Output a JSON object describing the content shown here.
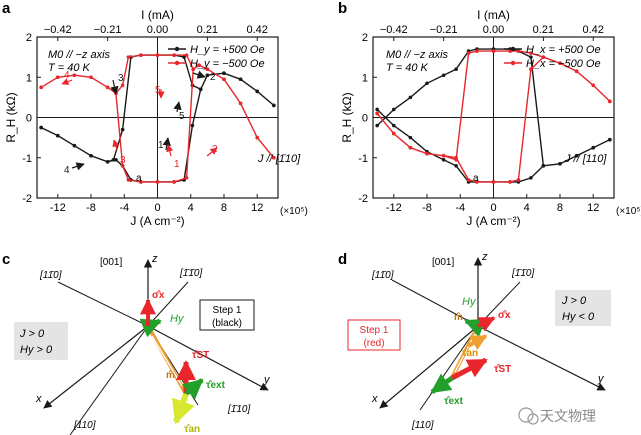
{
  "colors": {
    "black": "#1a1a1a",
    "red": "#e8262b",
    "orange": "#f0a030",
    "green": "#22a02a",
    "yellowgreen": "#d8e830",
    "grey_box": "#e4e4e4"
  },
  "chart_data": [
    {
      "type": "line",
      "panel": "a",
      "title": "",
      "xlabel": "J (A cm⁻²)",
      "x_multiplier": "(×10⁵)",
      "x2label": "I (mA)",
      "ylabel": "R_H (kΩ)",
      "xlim": [
        -14.5,
        14.5
      ],
      "ylim": [
        -2,
        2
      ],
      "x_ticks": [
        -12,
        -8,
        -4,
        0,
        4,
        8,
        12
      ],
      "y_ticks": [
        -2,
        -1,
        0,
        1,
        2
      ],
      "x2_ticks": [
        "−0.42",
        "−0.21",
        "0.00",
        "0.21",
        "0.42"
      ],
      "x2_tick_positions_J": [
        -12,
        -6,
        0,
        6,
        12
      ],
      "legend": [
        "H_y = +500 Oe",
        "H_y = −500 Oe"
      ],
      "annotations": {
        "geometry": "M0 // −z axis",
        "temperature": "T = 40 K",
        "current": "J // [1̄10]",
        "start_point": "a"
      },
      "step_numbers": [
        "1",
        "2",
        "3",
        "4",
        "5"
      ],
      "series": [
        {
          "name": "H_y = +500 Oe",
          "color": "black",
          "x": [
            -14,
            -12,
            -10,
            -8,
            -6,
            -5.3,
            -4.2,
            -3.2,
            -2,
            0,
            2,
            3.2,
            4.2,
            5.2,
            6,
            8,
            10,
            12,
            14,
            14,
            12,
            10,
            8,
            6,
            5.2,
            4.2,
            3.2,
            2,
            0,
            -2,
            -3.2,
            -4.2,
            -5,
            -6,
            -8,
            -10,
            -12,
            -14
          ],
          "y": [
            -0.25,
            -0.45,
            -0.7,
            -0.95,
            -1.1,
            -1.05,
            -0.3,
            1.5,
            1.55,
            1.55,
            1.55,
            1.5,
            0.8,
            0.7,
            1.05,
            1.1,
            0.95,
            0.65,
            0.3,
            0.3,
            0.65,
            0.95,
            1.1,
            1.05,
            0.7,
            -0.2,
            -1.55,
            -1.6,
            -1.6,
            -1.6,
            -1.55,
            -1.2,
            -1.05,
            -1.1,
            -0.95,
            -0.7,
            -0.45,
            -0.25
          ]
        },
        {
          "name": "H_y = −500 Oe",
          "color": "red",
          "x": [
            -14,
            -12,
            -10,
            -8,
            -6,
            -5,
            -4.2,
            -3.5,
            -2,
            0,
            2,
            3.5,
            4.3,
            5,
            6,
            8,
            10,
            12,
            14,
            14,
            12,
            10,
            8,
            6,
            5,
            4.3,
            3.5,
            2,
            0,
            -2,
            -3.5,
            -4.2,
            -5,
            -6,
            -8,
            -10,
            -12,
            -14
          ],
          "y": [
            0.75,
            1.0,
            1.05,
            1.0,
            0.75,
            0.6,
            -1.2,
            -1.55,
            -1.6,
            -1.6,
            -1.6,
            -1.5,
            1.2,
            1.3,
            1.2,
            0.95,
            0.35,
            -0.5,
            -1.0,
            -1.0,
            -0.5,
            0.35,
            0.95,
            1.2,
            1.3,
            1.2,
            1.55,
            1.55,
            1.55,
            1.55,
            1.5,
            0.8,
            0.6,
            0.75,
            1.0,
            1.05,
            1.0,
            0.75
          ]
        }
      ]
    },
    {
      "type": "line",
      "panel": "b",
      "title": "",
      "xlabel": "J (A cm⁻²)",
      "x_multiplier": "(×10⁵)",
      "x2label": "I (mA)",
      "ylabel": "R_H (kΩ)",
      "xlim": [
        -14.5,
        14.5
      ],
      "ylim": [
        -2,
        2
      ],
      "x_ticks": [
        -12,
        -8,
        -4,
        0,
        4,
        8,
        12
      ],
      "y_ticks": [
        -2,
        -1,
        0,
        1,
        2
      ],
      "x2_ticks": [
        "−0.42",
        "−0.21",
        "0.00",
        "0.21",
        "0.42"
      ],
      "x2_tick_positions_J": [
        -12,
        -6,
        0,
        6,
        12
      ],
      "legend": [
        "H_x = +500 Oe",
        "H_x = −500 Oe"
      ],
      "annotations": {
        "geometry": "M0 // −z axis",
        "temperature": "T = 40 K",
        "current": "J // [110]",
        "start_point": "a"
      },
      "series": [
        {
          "name": "H_x = +500 Oe",
          "color": "black",
          "x": [
            -14,
            -12,
            -10,
            -8,
            -6,
            -4.5,
            -3,
            -2,
            0,
            2,
            3,
            4.5,
            6,
            8,
            10,
            12,
            14,
            14,
            12,
            10,
            8,
            6,
            4.5,
            3,
            2,
            0,
            -2,
            -3,
            -4.5,
            -6,
            -8,
            -10,
            -12,
            -14
          ],
          "y": [
            -0.2,
            0.2,
            0.5,
            0.85,
            1.05,
            1.2,
            1.65,
            1.7,
            1.7,
            1.7,
            1.65,
            1.5,
            -1.2,
            -1.15,
            -0.95,
            -0.75,
            -0.55,
            -0.55,
            -0.75,
            -0.95,
            -1.15,
            -1.2,
            -1.5,
            -1.6,
            -1.6,
            -1.6,
            -1.6,
            -1.6,
            -1.2,
            -1.05,
            -0.85,
            -0.5,
            -0.2,
            0.2
          ]
        },
        {
          "name": "H_x = −500 Oe",
          "color": "red",
          "x": [
            -14,
            -12,
            -10,
            -8,
            -6,
            -4.5,
            -3,
            -2,
            0,
            2,
            3,
            4.5,
            6,
            8,
            10,
            12,
            14,
            14,
            12,
            10,
            8,
            6,
            4.5,
            3,
            2,
            0,
            -2,
            -3,
            -4.5,
            -6,
            -8,
            -10,
            -12,
            -14
          ],
          "y": [
            0.1,
            -0.4,
            -0.75,
            -0.9,
            -0.95,
            -1.05,
            1.6,
            1.65,
            1.65,
            1.65,
            1.65,
            1.6,
            1.5,
            1.35,
            1.15,
            0.8,
            0.4,
            0.4,
            0.8,
            1.15,
            1.35,
            1.5,
            1.2,
            -1.55,
            -1.6,
            -1.6,
            -1.6,
            -1.55,
            -1.0,
            -0.95,
            -0.9,
            -0.75,
            -0.4,
            0.1
          ]
        }
      ]
    }
  ],
  "diagram_c": {
    "panel_label": "c",
    "axis_labels": {
      "z": "z",
      "y": "y",
      "x": "x"
    },
    "directions": [
      "[001]",
      "[11̄0]",
      "[1̄1̄0]",
      "[1̄10]",
      "[110]"
    ],
    "vectors": [
      "σ̂x",
      "Hy",
      "τ̂ST",
      "m̂",
      "τ̂ext",
      "τ̂an"
    ],
    "condition_lines": [
      "J > 0",
      "Hy > 0"
    ],
    "step_box_lines": [
      "Step 1",
      "(black)"
    ]
  },
  "diagram_d": {
    "panel_label": "d",
    "axis_labels": {
      "z": "z",
      "y": "y",
      "x": "x"
    },
    "directions": [
      "[001]",
      "[11̄0]",
      "[1̄1̄0]",
      "[110]"
    ],
    "vectors": [
      "σ̂x",
      "Hy",
      "m̂",
      "τ̂an",
      "τ̂ST",
      "τ̂ext"
    ],
    "condition_lines": [
      "J > 0",
      "Hy < 0"
    ],
    "step_box_lines": [
      "Step 1",
      "(red)"
    ]
  },
  "watermark": "天文物理"
}
